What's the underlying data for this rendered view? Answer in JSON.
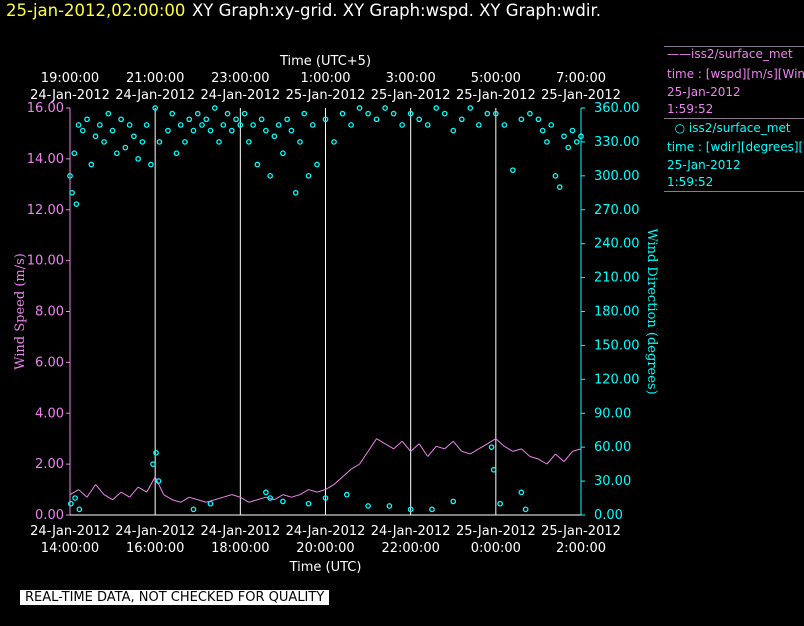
{
  "header": {
    "time": "25-jan-2012,02:00:00",
    "title": "XY Graph:xy-grid.  XY Graph:wspd.  XY Graph:wdir."
  },
  "legend": {
    "wspd": {
      "name": "iss2/surface_met",
      "var": "time : [wspd][m/s][Wind",
      "date": "25-Jan-2012",
      "time": "1:59:52",
      "color": "#ee82ee"
    },
    "wdir": {
      "name": "iss2/surface_met",
      "var": "time : [wdir][degrees][W",
      "date": "25-Jan-2012",
      "time": "1:59:52",
      "color": "#00ffff"
    }
  },
  "footer": {
    "quality": "REAL-TIME DATA, NOT CHECKED FOR QUALITY"
  },
  "chart_data": {
    "type": "line",
    "x_range_hours_utc": [
      14,
      26
    ],
    "bottom_axis": {
      "label": "Time (UTC)",
      "ticks": [
        {
          "h": 14,
          "date": "24-Jan-2012",
          "time": "14:00:00"
        },
        {
          "h": 16,
          "date": "24-Jan-2012",
          "time": "16:00:00"
        },
        {
          "h": 18,
          "date": "24-Jan-2012",
          "time": "18:00:00"
        },
        {
          "h": 20,
          "date": "24-Jan-2012",
          "time": "20:00:00"
        },
        {
          "h": 22,
          "date": "24-Jan-2012",
          "time": "22:00:00"
        },
        {
          "h": 24,
          "date": "25-Jan-2012",
          "time": "0:00:00"
        },
        {
          "h": 26,
          "date": "25-Jan-2012",
          "time": "2:00:00"
        }
      ]
    },
    "top_axis": {
      "label": "Time (UTC+5)",
      "ticks": [
        {
          "h": 14,
          "time": "19:00:00",
          "date": "24-Jan-2012"
        },
        {
          "h": 16,
          "time": "21:00:00",
          "date": "24-Jan-2012"
        },
        {
          "h": 18,
          "time": "23:00:00",
          "date": "24-Jan-2012"
        },
        {
          "h": 20,
          "time": "1:00:00",
          "date": "25-Jan-2012"
        },
        {
          "h": 22,
          "time": "3:00:00",
          "date": "25-Jan-2012"
        },
        {
          "h": 24,
          "time": "5:00:00",
          "date": "25-Jan-2012"
        },
        {
          "h": 26,
          "time": "7:00:00",
          "date": "25-Jan-2012"
        }
      ]
    },
    "left_axis": {
      "label": "Wind Speed (m/s)",
      "ylim": [
        0,
        16
      ],
      "ticks": [
        "0.00",
        "2.00",
        "4.00",
        "6.00",
        "8.00",
        "10.00",
        "12.00",
        "14.00",
        "16.00"
      ]
    },
    "right_axis": {
      "label": "Wind Direction (degrees)",
      "ylim": [
        0,
        360
      ],
      "ticks": [
        "0.00",
        "30.00",
        "60.00",
        "90.00",
        "120.00",
        "150.00",
        "180.00",
        "210.00",
        "240.00",
        "270.00",
        "300.00",
        "330.00",
        "360.00"
      ]
    },
    "grid": "vertical",
    "series": [
      {
        "name": "iss2/surface_met",
        "kind": "line",
        "axis": "left",
        "color": "#ee82ee",
        "x": [
          14.0,
          14.2,
          14.4,
          14.6,
          14.8,
          15.0,
          15.2,
          15.4,
          15.6,
          15.8,
          16.0,
          16.2,
          16.4,
          16.6,
          16.8,
          17.0,
          17.2,
          17.4,
          17.6,
          17.8,
          18.0,
          18.2,
          18.4,
          18.6,
          18.8,
          19.0,
          19.2,
          19.4,
          19.6,
          19.8,
          20.0,
          20.2,
          20.4,
          20.6,
          20.8,
          21.0,
          21.2,
          21.4,
          21.6,
          21.8,
          22.0,
          22.2,
          22.4,
          22.6,
          22.8,
          23.0,
          23.2,
          23.4,
          23.6,
          23.8,
          24.0,
          24.2,
          24.4,
          24.6,
          24.8,
          25.0,
          25.2,
          25.4,
          25.6,
          25.8,
          26.0
        ],
        "y": [
          0.8,
          1.0,
          0.7,
          1.2,
          0.8,
          0.6,
          0.9,
          0.7,
          1.1,
          0.9,
          1.5,
          0.8,
          0.6,
          0.5,
          0.7,
          0.6,
          0.5,
          0.6,
          0.7,
          0.8,
          0.7,
          0.5,
          0.6,
          0.7,
          0.6,
          0.8,
          0.7,
          0.8,
          1.0,
          0.9,
          1.0,
          1.2,
          1.5,
          1.8,
          2.0,
          2.5,
          3.0,
          2.8,
          2.6,
          2.9,
          2.5,
          2.8,
          2.3,
          2.7,
          2.6,
          2.9,
          2.5,
          2.4,
          2.6,
          2.8,
          3.0,
          2.7,
          2.5,
          2.6,
          2.3,
          2.2,
          2.0,
          2.4,
          2.1,
          2.5,
          2.6
        ]
      },
      {
        "name": "iss2/surface_met",
        "kind": "scatter",
        "axis": "right",
        "color": "#00ffff",
        "x": [
          14.0,
          14.05,
          14.1,
          14.15,
          14.2,
          14.3,
          14.4,
          14.5,
          14.6,
          14.7,
          14.8,
          14.9,
          15.0,
          15.1,
          15.2,
          15.3,
          15.4,
          15.5,
          15.6,
          15.7,
          15.8,
          15.9,
          16.0,
          16.1,
          16.3,
          16.4,
          16.5,
          16.6,
          16.7,
          16.8,
          16.9,
          17.0,
          17.1,
          17.2,
          17.3,
          17.4,
          17.5,
          17.6,
          17.7,
          17.8,
          17.9,
          18.0,
          18.1,
          18.2,
          18.3,
          18.4,
          18.5,
          18.6,
          18.7,
          18.8,
          18.9,
          19.0,
          19.1,
          19.2,
          19.3,
          19.4,
          19.5,
          19.6,
          19.7,
          19.8,
          20.0,
          20.2,
          20.4,
          20.6,
          20.8,
          21.0,
          21.2,
          21.4,
          21.6,
          21.8,
          22.0,
          22.2,
          22.4,
          22.6,
          22.8,
          23.0,
          23.2,
          23.4,
          23.6,
          23.8,
          24.0,
          24.2,
          24.4,
          24.6,
          24.8,
          25.0,
          25.1,
          25.2,
          25.3,
          25.4,
          25.5,
          25.6,
          25.7,
          25.8,
          25.9,
          26.0,
          14.02,
          14.12,
          14.22,
          15.95,
          16.02,
          16.08,
          19.6,
          20.0,
          21.0,
          22.0,
          23.0,
          23.9,
          23.95,
          24.1,
          24.6,
          24.7,
          18.6,
          18.7,
          17.3,
          16.9,
          19.0,
          20.5,
          21.5,
          22.5
        ],
        "y": [
          300,
          285,
          320,
          275,
          345,
          340,
          350,
          310,
          335,
          345,
          330,
          355,
          340,
          320,
          350,
          325,
          345,
          335,
          315,
          330,
          345,
          310,
          360,
          330,
          340,
          355,
          320,
          345,
          330,
          350,
          340,
          355,
          345,
          350,
          340,
          360,
          330,
          345,
          355,
          340,
          350,
          345,
          355,
          330,
          345,
          310,
          350,
          340,
          300,
          335,
          345,
          320,
          350,
          340,
          285,
          330,
          355,
          300,
          345,
          310,
          350,
          330,
          355,
          345,
          360,
          355,
          350,
          360,
          355,
          345,
          355,
          350,
          345,
          360,
          355,
          340,
          350,
          360,
          345,
          355,
          355,
          345,
          305,
          350,
          355,
          350,
          340,
          330,
          345,
          300,
          290,
          335,
          325,
          340,
          330,
          335,
          10,
          15,
          5,
          45,
          55,
          30,
          10,
          15,
          8,
          5,
          12,
          60,
          40,
          10,
          20,
          5,
          20,
          15,
          10,
          5,
          12,
          18,
          8,
          5
        ]
      }
    ]
  }
}
